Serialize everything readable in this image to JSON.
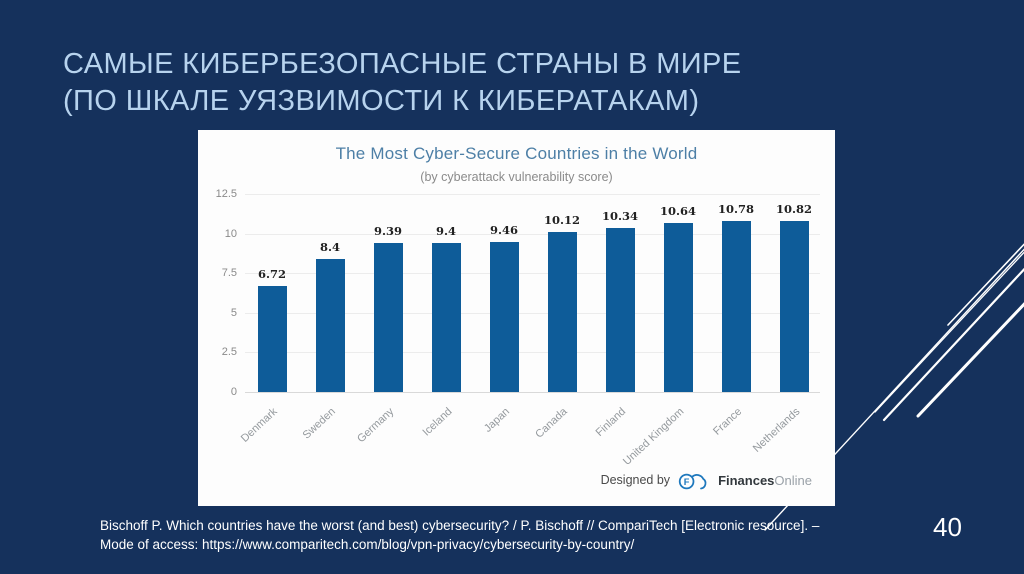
{
  "slide": {
    "title_lines": [
      "САМЫЕ КИБЕРБЕЗОПАСНЫЕ СТРАНЫ В МИРЕ",
      "(ПО ШКАЛЕ УЯЗВИМОСТИ К КИБЕРАТАКАМ)"
    ],
    "page_number": "40",
    "citation_lines": [
      "Bischoff P. Which countries have the worst (and best) cybersecurity? / P. Bischoff // CompariTech [Electronic resource]. –",
      "Mode of access: https://www.comparitech.com/blog/vpn-privacy/cybersecurity-by-country/"
    ],
    "colors": {
      "background": "#15315c",
      "title_text": "#b7d3ee",
      "decoration_lines": "#ffffff"
    }
  },
  "chart_data": {
    "type": "bar",
    "title": "The Most Cyber-Secure Countries in the World",
    "subtitle": "(by cyberattack vulnerability score)",
    "categories": [
      "Denmark",
      "Sweden",
      "Germany",
      "Iceland",
      "Japan",
      "Canada",
      "Finland",
      "United Kingdom",
      "France",
      "Netherlands"
    ],
    "values": [
      6.72,
      8.4,
      9.39,
      9.4,
      9.46,
      10.12,
      10.34,
      10.64,
      10.78,
      10.82
    ],
    "value_labels": [
      "6.72",
      "8.4",
      "9.39",
      "9.4",
      "9.46",
      "10.12",
      "10.34",
      "10.64",
      "10.78",
      "10.82"
    ],
    "y_ticks": [
      "0",
      "2.5",
      "5",
      "7.5",
      "10",
      "12.5"
    ],
    "ylim": [
      0,
      12.5
    ],
    "xlabel": "",
    "ylabel": "",
    "grid": true,
    "legend": false,
    "bar_color": "#0e5c99",
    "credit": {
      "prefix": "Designed by",
      "brand_bold": "Finances",
      "brand_light": "Online"
    }
  }
}
